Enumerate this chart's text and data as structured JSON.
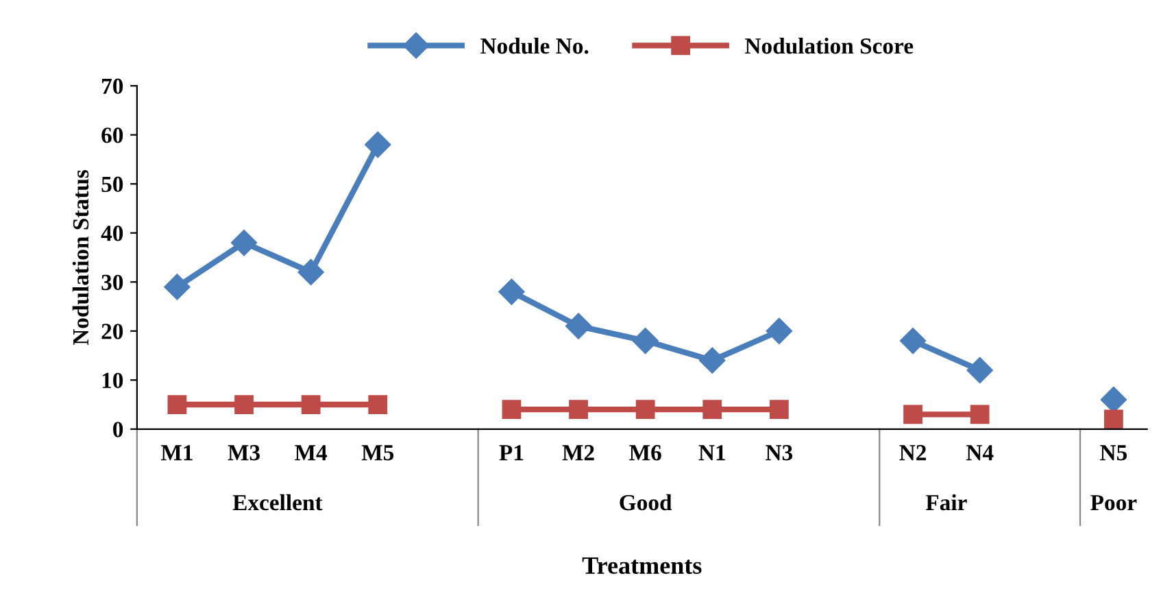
{
  "chart_data": {
    "type": "line",
    "xlabel": "Treatments",
    "ylabel": "Nodulation Status",
    "categories": [
      "M1",
      "M3",
      "M4",
      "M5",
      null,
      "P1",
      "M2",
      "M6",
      "N1",
      "N3",
      null,
      "N2",
      "N4",
      null,
      "N5"
    ],
    "series": [
      {
        "name": "Nodule No.",
        "color": "#4a7ebb",
        "marker": "diamond",
        "values": [
          29,
          38,
          32,
          58,
          null,
          28,
          21,
          18,
          14,
          20,
          null,
          18,
          12,
          null,
          6
        ]
      },
      {
        "name": "Nodulation Score",
        "color": "#be4b48",
        "marker": "square",
        "values": [
          5,
          5,
          5,
          5,
          null,
          4,
          4,
          4,
          4,
          4,
          null,
          3,
          3,
          null,
          2
        ]
      }
    ],
    "annotations": [
      "Excellent",
      "Good",
      "Fair",
      "Poor"
    ],
    "ylim": [
      0,
      70
    ],
    "yticks": [
      0,
      10,
      20,
      30,
      40,
      50,
      60,
      70
    ],
    "grid": false,
    "legend": "top",
    "line_style": "solid"
  }
}
